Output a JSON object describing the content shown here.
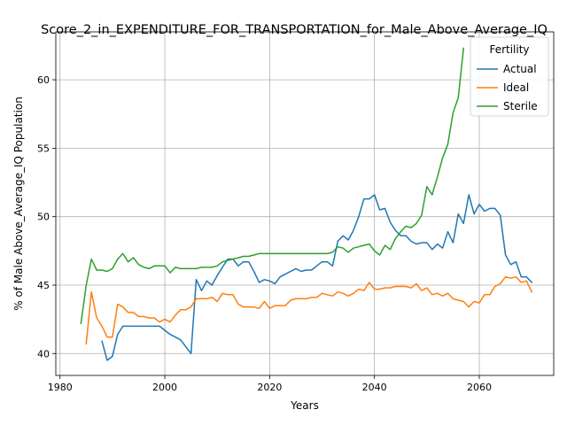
{
  "chart_data": {
    "type": "line",
    "title": "Score_2_in_EXPENDITURE_FOR_TRANSPORTATION_for_Male_Above_Average_IQ",
    "xlabel": "Years",
    "ylabel": "% of Male Above_Average_IQ Population",
    "xlim": [
      1979.2,
      2074.2
    ],
    "ylim": [
      38.4,
      63.5
    ],
    "xticks": [
      1980,
      2000,
      2020,
      2040,
      2060
    ],
    "yticks": [
      40,
      45,
      50,
      55,
      60
    ],
    "grid": true,
    "legend": {
      "title": "Fertility",
      "placement": "upper right",
      "entries": [
        "Actual",
        "Ideal",
        "Sterile"
      ]
    },
    "series": [
      {
        "name": "Actual",
        "color": "#1f77b4",
        "x": [
          1988,
          1989,
          1990,
          1991,
          1992,
          1993,
          1994,
          1995,
          1996,
          1997,
          1998,
          1999,
          2000,
          2001,
          2002,
          2003,
          2004,
          2005,
          2006,
          2007,
          2008,
          2009,
          2010,
          2011,
          2012,
          2013,
          2014,
          2015,
          2016,
          2017,
          2018,
          2019,
          2020,
          2021,
          2022,
          2023,
          2024,
          2025,
          2026,
          2027,
          2028,
          2029,
          2030,
          2031,
          2032,
          2033,
          2034,
          2035,
          2036,
          2037,
          2038,
          2039,
          2040,
          2041,
          2042,
          2043,
          2044,
          2045,
          2046,
          2047,
          2048,
          2049,
          2050,
          2051,
          2052,
          2053,
          2054,
          2055,
          2056,
          2057,
          2058,
          2059,
          2060,
          2061,
          2062,
          2063,
          2064,
          2065,
          2066,
          2067,
          2068,
          2069,
          2070
        ],
        "y": [
          40.9,
          39.5,
          39.8,
          41.4,
          42.0,
          42.0,
          42.0,
          42.0,
          42.0,
          42.0,
          42.0,
          42.0,
          41.7,
          41.4,
          41.2,
          41.0,
          40.5,
          40.0,
          45.4,
          44.6,
          45.3,
          45.0,
          45.7,
          46.3,
          46.9,
          46.9,
          46.4,
          46.7,
          46.7,
          46.0,
          45.2,
          45.4,
          45.3,
          45.1,
          45.6,
          45.8,
          46.0,
          46.2,
          46.0,
          46.1,
          46.1,
          46.4,
          46.7,
          46.7,
          46.4,
          48.2,
          48.6,
          48.3,
          49.0,
          50.0,
          51.3,
          51.3,
          51.6,
          50.5,
          50.6,
          49.6,
          49.0,
          48.6,
          48.6,
          48.2,
          48.0,
          48.1,
          48.1,
          47.6,
          48.0,
          47.7,
          48.9,
          48.1,
          50.2,
          49.5,
          51.6,
          50.2,
          50.9,
          50.4,
          50.6,
          50.6,
          50.1,
          47.2,
          46.5,
          46.7,
          45.6,
          45.6,
          45.2
        ]
      },
      {
        "name": "Ideal",
        "color": "#ff7f0e",
        "x": [
          1985,
          1986,
          1987,
          1988,
          1989,
          1990,
          1991,
          1992,
          1993,
          1994,
          1995,
          1996,
          1997,
          1998,
          1999,
          2000,
          2001,
          2002,
          2003,
          2004,
          2005,
          2006,
          2007,
          2008,
          2009,
          2010,
          2011,
          2012,
          2013,
          2014,
          2015,
          2016,
          2017,
          2018,
          2019,
          2020,
          2021,
          2022,
          2023,
          2024,
          2025,
          2026,
          2027,
          2028,
          2029,
          2030,
          2031,
          2032,
          2033,
          2034,
          2035,
          2036,
          2037,
          2038,
          2039,
          2040,
          2041,
          2042,
          2043,
          2044,
          2045,
          2046,
          2047,
          2048,
          2049,
          2050,
          2051,
          2052,
          2053,
          2054,
          2055,
          2056,
          2057,
          2058,
          2059,
          2060,
          2061,
          2062,
          2063,
          2064,
          2065,
          2066,
          2067,
          2068,
          2069,
          2070
        ],
        "y": [
          40.7,
          44.5,
          42.6,
          42.0,
          41.2,
          41.2,
          43.6,
          43.4,
          43.0,
          43.0,
          42.7,
          42.7,
          42.6,
          42.6,
          42.3,
          42.5,
          42.3,
          42.8,
          43.2,
          43.2,
          43.4,
          44.0,
          44.0,
          44.0,
          44.1,
          43.8,
          44.4,
          44.3,
          44.3,
          43.6,
          43.4,
          43.4,
          43.4,
          43.3,
          43.8,
          43.3,
          43.5,
          43.5,
          43.5,
          43.9,
          44.0,
          44.0,
          44.0,
          44.1,
          44.1,
          44.4,
          44.3,
          44.2,
          44.5,
          44.4,
          44.2,
          44.4,
          44.7,
          44.6,
          45.2,
          44.7,
          44.7,
          44.8,
          44.8,
          44.9,
          44.9,
          44.9,
          44.8,
          45.1,
          44.6,
          44.8,
          44.3,
          44.4,
          44.2,
          44.4,
          44.0,
          43.9,
          43.8,
          43.4,
          43.8,
          43.7,
          44.3,
          44.3,
          44.9,
          45.1,
          45.6,
          45.5,
          45.6,
          45.2,
          45.3,
          44.5
        ]
      },
      {
        "name": "Sterile",
        "color": "#2ca02c",
        "x": [
          1984,
          1985,
          1986,
          1987,
          1988,
          1989,
          1990,
          1991,
          1992,
          1993,
          1994,
          1995,
          1996,
          1997,
          1998,
          1999,
          2000,
          2001,
          2002,
          2003,
          2004,
          2005,
          2006,
          2007,
          2008,
          2009,
          2010,
          2011,
          2012,
          2013,
          2014,
          2015,
          2016,
          2017,
          2018,
          2019,
          2020,
          2021,
          2022,
          2023,
          2024,
          2025,
          2026,
          2027,
          2028,
          2029,
          2030,
          2031,
          2032,
          2033,
          2034,
          2035,
          2036,
          2037,
          2038,
          2039,
          2040,
          2041,
          2042,
          2043,
          2044,
          2045,
          2046,
          2047,
          2048,
          2049,
          2050,
          2051,
          2052,
          2053,
          2054,
          2055,
          2056,
          2057
        ],
        "y": [
          42.2,
          45.0,
          46.9,
          46.1,
          46.1,
          46.0,
          46.2,
          46.9,
          47.3,
          46.7,
          47.0,
          46.5,
          46.3,
          46.2,
          46.4,
          46.4,
          46.4,
          45.9,
          46.3,
          46.2,
          46.2,
          46.2,
          46.2,
          46.3,
          46.3,
          46.3,
          46.4,
          46.7,
          46.8,
          46.9,
          47.0,
          47.1,
          47.1,
          47.2,
          47.3,
          47.3,
          47.3,
          47.3,
          47.3,
          47.3,
          47.3,
          47.3,
          47.3,
          47.3,
          47.3,
          47.3,
          47.3,
          47.3,
          47.4,
          47.8,
          47.7,
          47.4,
          47.7,
          47.8,
          47.9,
          48.0,
          47.5,
          47.2,
          47.9,
          47.6,
          48.4,
          48.9,
          49.3,
          49.2,
          49.5,
          50.1,
          52.2,
          51.6,
          52.9,
          54.3,
          55.3,
          57.6,
          58.7,
          62.3
        ]
      }
    ]
  }
}
